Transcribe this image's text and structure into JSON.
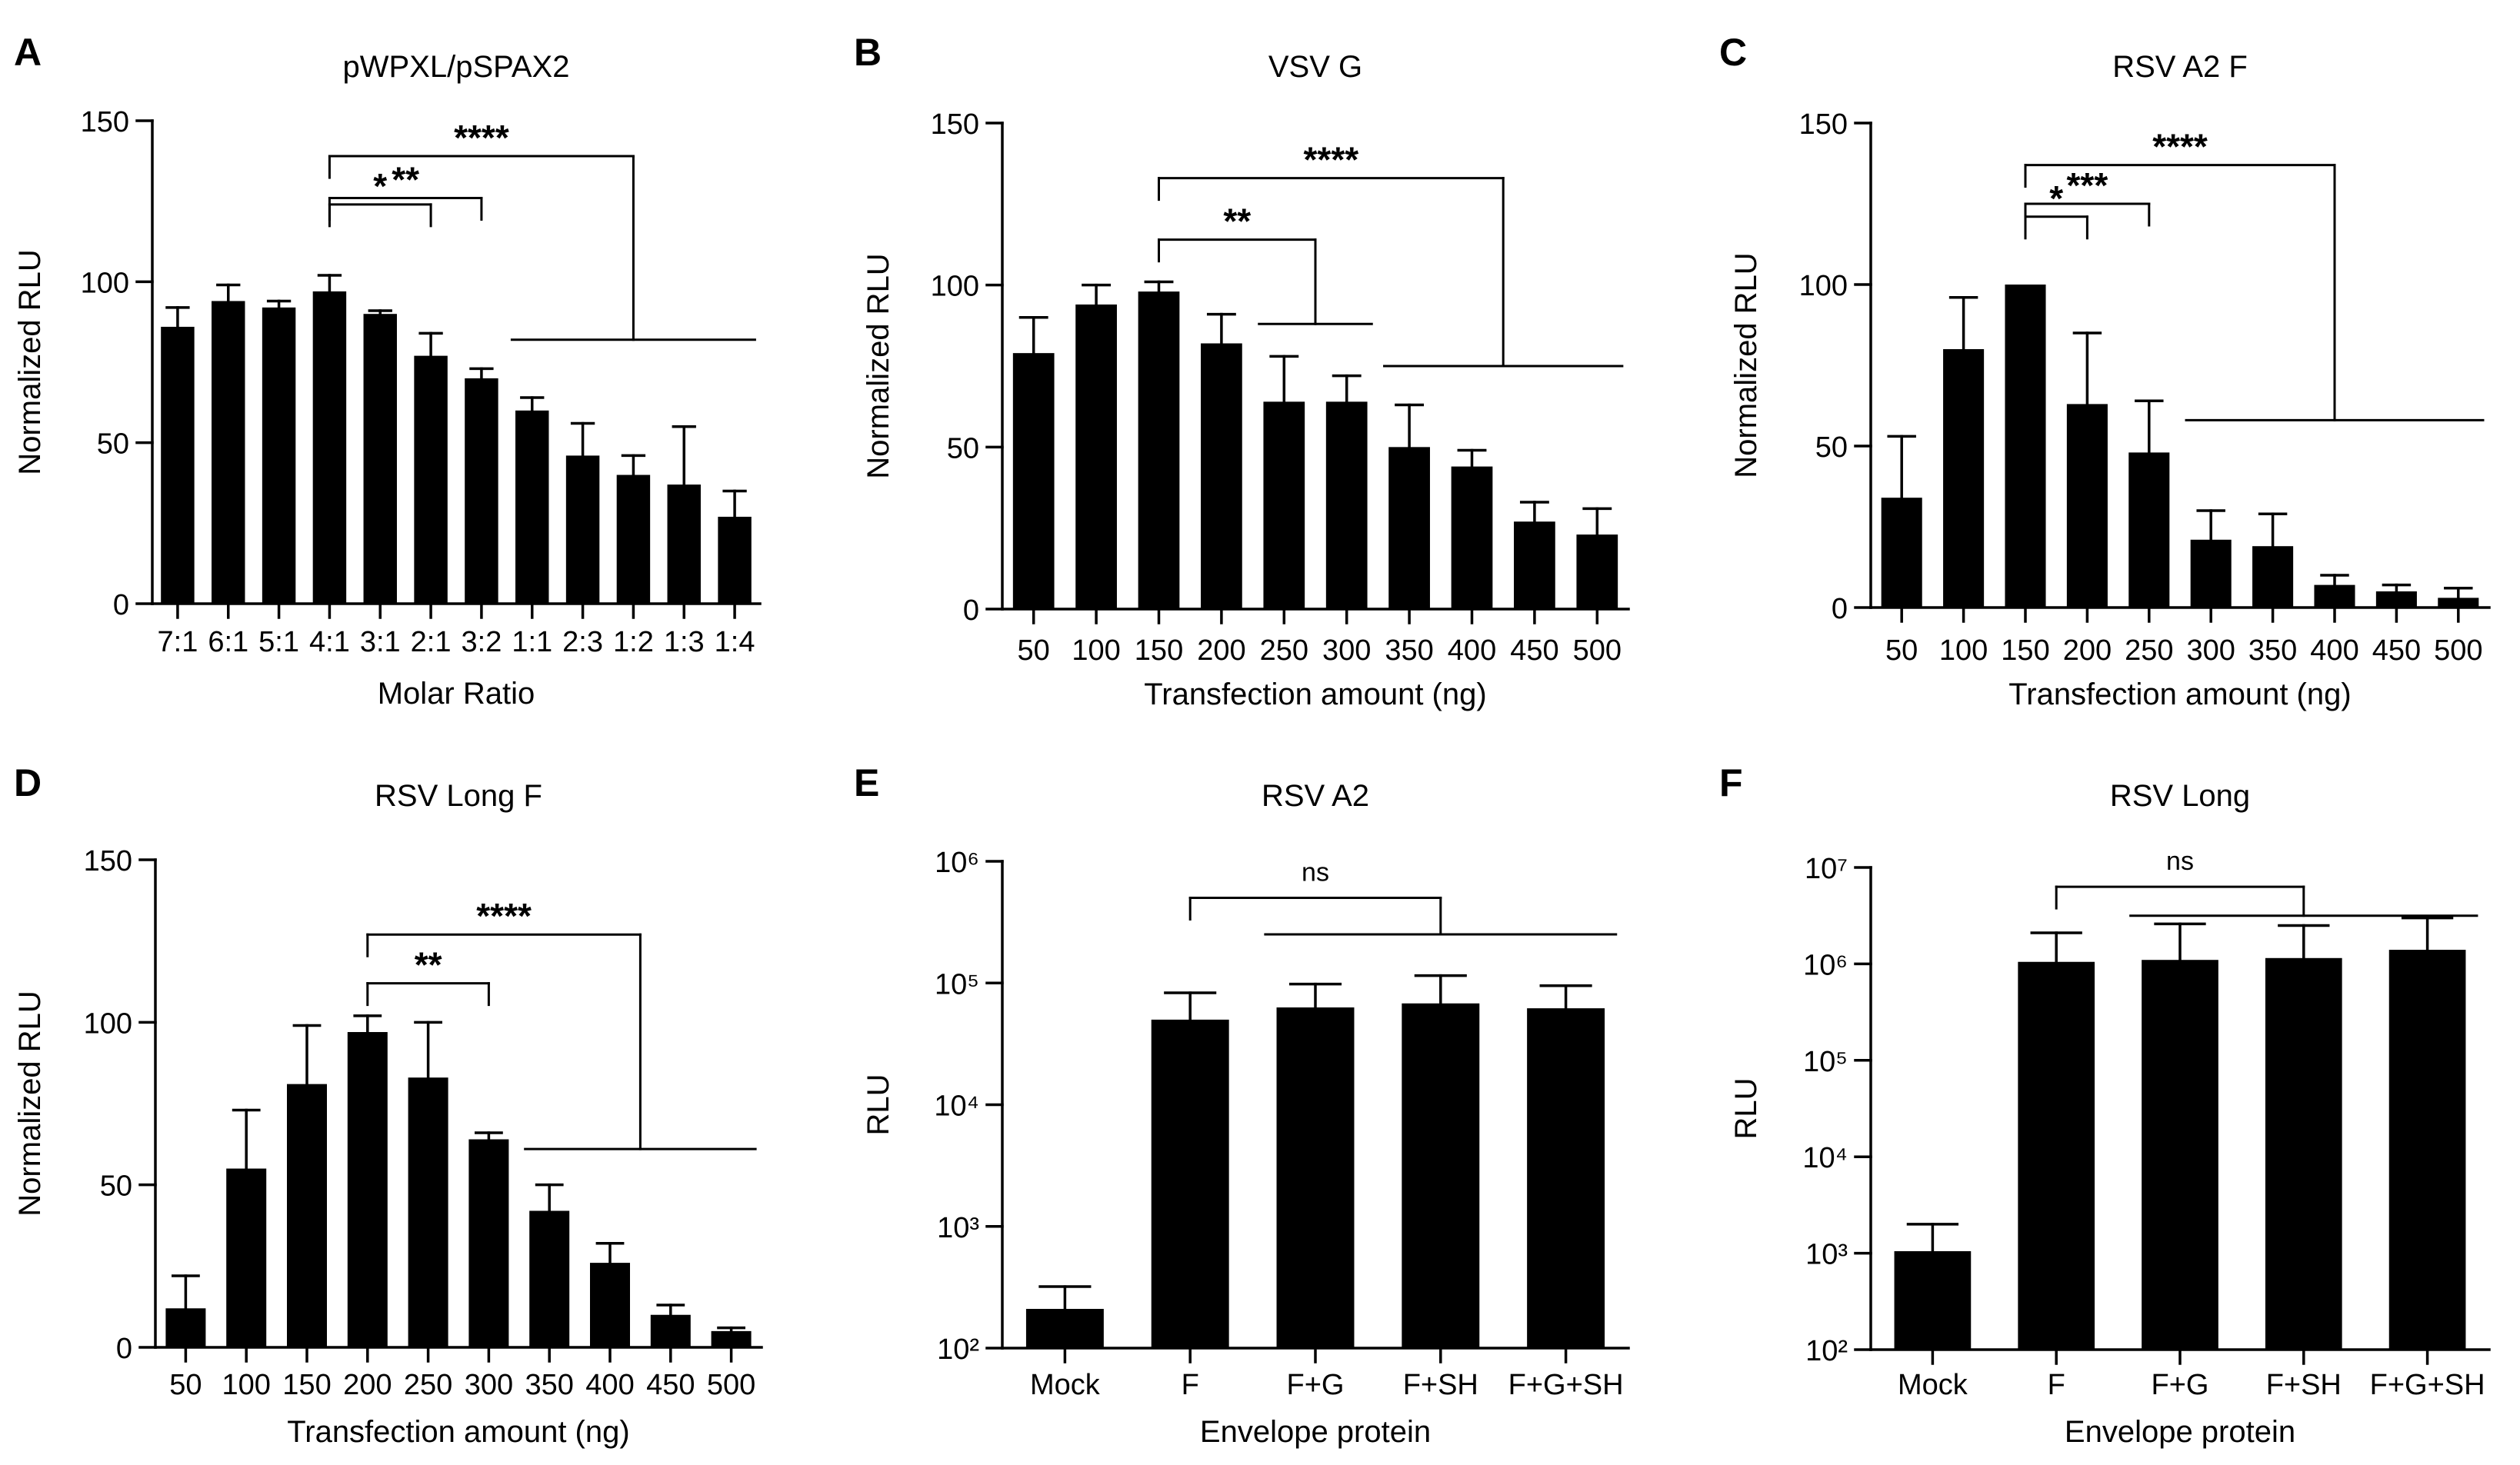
{
  "chart_data": [
    {
      "panel": "A",
      "type": "bar",
      "scale": "linear",
      "title": "pWPXL/pSPAX2",
      "xlabel": "Molar Ratio",
      "ylabel": "Normalized RLU",
      "ylim": [
        0,
        150
      ],
      "yticks": [
        0,
        50,
        100,
        150
      ],
      "ytick_labels": [
        "0",
        "50",
        "100",
        "150"
      ],
      "categories": [
        "7:1",
        "6:1",
        "5:1",
        "4:1",
        "3:1",
        "2:1",
        "3:2",
        "1:1",
        "2:3",
        "1:2",
        "1:3",
        "1:4"
      ],
      "values": [
        86,
        94,
        92,
        97,
        90,
        77,
        70,
        60,
        46,
        40,
        37,
        27
      ],
      "errors": [
        6,
        5,
        2,
        5,
        1,
        7,
        3,
        4,
        10,
        6,
        18,
        8
      ],
      "comparisons": [
        {
          "label": "*",
          "from": 3,
          "to": [
            5
          ],
          "value": 124
        },
        {
          "label": "**",
          "from": 3,
          "to": [
            6
          ],
          "value": 126
        },
        {
          "label": "****",
          "from": 3,
          "to": [
            7,
            11
          ],
          "value": 139,
          "group_value": 82
        }
      ]
    },
    {
      "panel": "B",
      "type": "bar",
      "scale": "linear",
      "title": "VSV G",
      "xlabel": "Transfection amount (ng)",
      "ylabel": "Normalized RLU",
      "ylim": [
        0,
        150
      ],
      "yticks": [
        0,
        50,
        100,
        150
      ],
      "ytick_labels": [
        "0",
        "50",
        "100",
        "150"
      ],
      "categories": [
        "50",
        "100",
        "150",
        "200",
        "250",
        "300",
        "350",
        "400",
        "450",
        "500"
      ],
      "values": [
        79,
        94,
        98,
        82,
        64,
        64,
        50,
        44,
        27,
        23
      ],
      "errors": [
        11,
        6,
        3,
        9,
        14,
        8,
        13,
        5,
        6,
        8
      ],
      "comparisons": [
        {
          "label": "**",
          "from": 2,
          "to": [
            4,
            5
          ],
          "value": 114,
          "group_value": 88
        },
        {
          "label": "****",
          "from": 2,
          "to": [
            6,
            9
          ],
          "value": 133,
          "group_value": 75
        }
      ]
    },
    {
      "panel": "C",
      "type": "bar",
      "scale": "linear",
      "title": "RSV A2 F",
      "xlabel": "Transfection amount (ng)",
      "ylabel": "Normalized RLU",
      "ylim": [
        0,
        150
      ],
      "yticks": [
        0,
        50,
        100,
        150
      ],
      "ytick_labels": [
        "0",
        "50",
        "100",
        "150"
      ],
      "categories": [
        "50",
        "100",
        "150",
        "200",
        "250",
        "300",
        "350",
        "400",
        "450",
        "500"
      ],
      "values": [
        34,
        80,
        100,
        63,
        48,
        21,
        19,
        7,
        5,
        3
      ],
      "errors": [
        19,
        16,
        0,
        22,
        16,
        9,
        10,
        3,
        2,
        3
      ],
      "comparisons": [
        {
          "label": "*",
          "from": 2,
          "to": [
            3
          ],
          "value": 121
        },
        {
          "label": "***",
          "from": 2,
          "to": [
            4
          ],
          "value": 125
        },
        {
          "label": "****",
          "from": 2,
          "to": [
            5,
            9
          ],
          "value": 137,
          "group_value": 58
        }
      ]
    },
    {
      "panel": "D",
      "type": "bar",
      "scale": "linear",
      "title": "RSV Long F",
      "xlabel": "Transfection amount (ng)",
      "ylabel": "Normalized RLU",
      "ylim": [
        0,
        150
      ],
      "yticks": [
        0,
        50,
        100,
        150
      ],
      "ytick_labels": [
        "0",
        "50",
        "100",
        "150"
      ],
      "categories": [
        "50",
        "100",
        "150",
        "200",
        "250",
        "300",
        "350",
        "400",
        "450",
        "500"
      ],
      "values": [
        12,
        55,
        81,
        97,
        83,
        64,
        42,
        26,
        10,
        5
      ],
      "errors": [
        10,
        18,
        18,
        5,
        17,
        2,
        8,
        6,
        3,
        1
      ],
      "comparisons": [
        {
          "label": "**",
          "from": 3,
          "to": [
            5
          ],
          "value": 112
        },
        {
          "label": "****",
          "from": 3,
          "to": [
            6,
            9
          ],
          "value": 127,
          "group_value": 61
        }
      ]
    },
    {
      "panel": "E",
      "type": "bar",
      "scale": "log",
      "title": "RSV A2",
      "xlabel": "Envelope protein",
      "ylabel": "RLU",
      "ylim_log10": [
        2,
        6
      ],
      "yticks_log10": [
        2,
        3,
        4,
        5,
        6
      ],
      "ytick_labels": [
        "10²",
        "10³",
        "10⁴",
        "10⁵",
        "10⁶"
      ],
      "categories": [
        "Mock",
        "F",
        "F+G",
        "F+SH",
        "F+G+SH"
      ],
      "values": [
        210,
        50000,
        63000,
        68000,
        62000
      ],
      "error_tops": [
        320,
        83000,
        98000,
        115000,
        95000
      ],
      "comparisons": [
        {
          "label": "ns",
          "from": 1,
          "to": [
            2,
            4
          ],
          "value_log10": 5.7,
          "group_value_log10": 5.4
        }
      ]
    },
    {
      "panel": "F",
      "type": "bar",
      "scale": "log",
      "title": "RSV Long",
      "xlabel": "Envelope protein",
      "ylabel": "RLU",
      "ylim_log10": [
        2,
        7
      ],
      "yticks_log10": [
        2,
        3,
        4,
        5,
        6,
        7
      ],
      "ytick_labels": [
        "10²",
        "10³",
        "10⁴",
        "10⁵",
        "10⁶",
        "10⁷"
      ],
      "categories": [
        "Mock",
        "F",
        "F+G",
        "F+SH",
        "F+G+SH"
      ],
      "values": [
        1050,
        1050000,
        1100000,
        1150000,
        1400000
      ],
      "error_tops": [
        2000,
        2100000,
        2600000,
        2500000,
        3000000
      ],
      "comparisons": [
        {
          "label": "ns",
          "from": 1,
          "to": [
            2,
            4
          ],
          "value_log10": 6.8,
          "group_value_log10": 6.5
        }
      ]
    }
  ]
}
